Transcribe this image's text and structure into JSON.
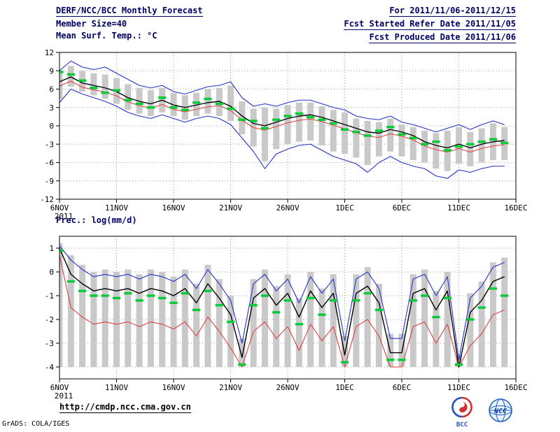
{
  "header": {
    "title": "DERF/NCC/BCC Monthly Forecast",
    "member_size": "Member Size=40",
    "variable": "Mean Surf. Temp.: °C",
    "for_period": "For 2011/11/06-2011/12/15",
    "fcst_started": "Fcst Started Refer Date 2011/11/05",
    "fcst_produced": "Fcst Produced Date 2011/11/06"
  },
  "panel2_label": "Prec.: log(mm/d)",
  "footer": {
    "url": "http://cmdp.ncc.cma.gov.cn",
    "grads_credit": "GrADS: COLA/IGES",
    "logos": [
      {
        "label": "BCC"
      },
      {
        "label": "NCC"
      }
    ]
  },
  "colors": {
    "bar": "#c9c9c9",
    "blue": "#2233cc",
    "red": "#e04040",
    "green": "#00cc33",
    "black": "#000000",
    "grid": "#9a9a9a",
    "header_text": "#000066"
  },
  "chart_data": [
    {
      "type": "line",
      "title": "Mean Surf. Temp.: °C",
      "x_max": 40,
      "xtick_positions": [
        0,
        5,
        10,
        15,
        20,
        25,
        30,
        35,
        40
      ],
      "xtick_labels": [
        "6NOV",
        "11NOV",
        "16NOV",
        "21NOV",
        "26NOV",
        "1DEC",
        "6DEC",
        "11DEC",
        "16DEC"
      ],
      "x_sublabel": "2011",
      "ylim": [
        -12,
        12
      ],
      "yticks": [
        -12,
        -9,
        -6,
        -3,
        0,
        3,
        6,
        9,
        12
      ],
      "series": [
        {
          "name": "member-max",
          "color": "blue",
          "width": 1.1,
          "values": [
            9.0,
            10.6,
            9.6,
            9.2,
            9.6,
            8.6,
            7.6,
            6.6,
            6.2,
            6.6,
            5.6,
            5.2,
            5.8,
            6.4,
            6.6,
            7.2,
            4.6,
            3.2,
            3.6,
            3.2,
            3.8,
            4.2,
            4.2,
            3.6,
            3.0,
            2.6,
            1.6,
            1.2,
            1.0,
            1.6,
            0.6,
            0.2,
            -0.4,
            -1.0,
            -0.4,
            0.2,
            -0.6,
            0.2,
            0.8,
            0.2
          ]
        },
        {
          "name": "member-min",
          "color": "blue",
          "width": 1.1,
          "values": [
            3.8,
            6.0,
            5.2,
            4.6,
            4.0,
            3.2,
            2.2,
            1.6,
            1.2,
            1.8,
            1.2,
            0.6,
            1.2,
            1.6,
            1.2,
            0.2,
            -2.0,
            -4.2,
            -7.0,
            -4.6,
            -3.8,
            -3.2,
            -3.0,
            -4.0,
            -5.0,
            -5.6,
            -6.2,
            -7.6,
            -6.0,
            -5.0,
            -6.0,
            -6.6,
            -7.0,
            -8.2,
            -8.6,
            -7.2,
            -7.6,
            -7.0,
            -6.6,
            -6.6
          ]
        },
        {
          "name": "control-red",
          "color": "red",
          "width": 1.1,
          "values": [
            6.5,
            7.3,
            6.3,
            5.9,
            5.5,
            4.9,
            3.9,
            3.3,
            2.9,
            3.5,
            2.7,
            2.3,
            2.7,
            3.1,
            3.3,
            2.5,
            0.9,
            -0.3,
            -0.7,
            -0.1,
            0.5,
            0.9,
            1.1,
            0.7,
            0.1,
            -0.5,
            -1.1,
            -1.7,
            -1.9,
            -1.3,
            -1.7,
            -2.3,
            -3.3,
            -3.9,
            -4.3,
            -3.7,
            -4.3,
            -3.7,
            -3.3,
            -3.1
          ]
        },
        {
          "name": "ensemble-mean",
          "color": "black",
          "width": 1.4,
          "values": [
            7.2,
            8.0,
            7.0,
            6.6,
            6.2,
            5.6,
            4.6,
            4.0,
            3.6,
            4.2,
            3.4,
            3.0,
            3.4,
            3.8,
            4.0,
            3.2,
            1.6,
            0.4,
            0.0,
            0.6,
            1.2,
            1.6,
            1.8,
            1.4,
            0.8,
            0.2,
            -0.4,
            -1.0,
            -1.2,
            -0.6,
            -1.0,
            -1.6,
            -2.6,
            -3.2,
            -3.6,
            -3.0,
            -3.6,
            -3.0,
            -2.6,
            -2.4
          ]
        }
      ],
      "spread_bars": {
        "color": "bar",
        "high": [
          9.0,
          9.8,
          9.0,
          8.6,
          8.4,
          7.8,
          6.8,
          6.2,
          5.8,
          6.2,
          5.4,
          5.0,
          5.4,
          6.0,
          6.2,
          6.6,
          4.0,
          2.8,
          3.0,
          2.8,
          3.4,
          3.8,
          3.8,
          3.2,
          2.6,
          2.2,
          1.2,
          0.8,
          0.6,
          1.2,
          0.2,
          -0.2,
          -0.8,
          -1.2,
          -0.8,
          -0.2,
          -1.0,
          -0.4,
          0.4,
          -0.2
        ],
        "low": [
          4.4,
          6.4,
          5.6,
          5.0,
          4.4,
          3.6,
          2.6,
          2.0,
          1.6,
          2.2,
          1.6,
          1.0,
          1.6,
          2.0,
          1.6,
          0.8,
          -1.4,
          -3.4,
          -5.8,
          -3.8,
          -3.0,
          -2.6,
          -2.4,
          -3.2,
          -4.2,
          -4.6,
          -5.2,
          -6.4,
          -5.0,
          -4.2,
          -5.0,
          -5.6,
          -6.0,
          -7.0,
          -7.4,
          -6.2,
          -6.6,
          -6.0,
          -5.6,
          -5.6
        ]
      },
      "green_dashes": {
        "color": "green",
        "values": [
          8.8,
          8.4,
          7.4,
          6.2,
          5.4,
          5.8,
          4.2,
          3.6,
          3.0,
          4.6,
          3.0,
          2.6,
          3.8,
          4.4,
          3.6,
          2.8,
          1.0,
          0.8,
          -0.4,
          1.0,
          1.6,
          2.0,
          1.4,
          1.0,
          0.4,
          -0.6,
          -1.0,
          -1.6,
          -0.8,
          -0.2,
          -1.4,
          -2.0,
          -3.0,
          -2.6,
          -4.0,
          -3.4,
          -3.0,
          -2.6,
          -2.2,
          -2.8
        ]
      }
    },
    {
      "type": "line",
      "title": "Prec.: log(mm/d)",
      "x_max": 40,
      "xtick_positions": [
        0,
        5,
        10,
        15,
        20,
        25,
        30,
        35,
        40
      ],
      "xtick_labels": [
        "6NOV",
        "11NOV",
        "16NOV",
        "21NOV",
        "26NOV",
        "1DEC",
        "6DEC",
        "11DEC",
        "16DEC"
      ],
      "x_sublabel": "2011",
      "ylim": [
        -4.5,
        1.5
      ],
      "yticks": [
        -4,
        -3,
        -2,
        -1,
        0,
        1
      ],
      "series": [
        {
          "name": "member-max",
          "color": "blue",
          "width": 1.1,
          "values": [
            1.1,
            0.5,
            0.1,
            -0.2,
            -0.1,
            -0.2,
            -0.1,
            -0.3,
            -0.1,
            -0.2,
            -0.4,
            -0.1,
            -0.7,
            0.1,
            -0.5,
            -1.2,
            -3.0,
            -0.5,
            -0.1,
            -0.8,
            -0.3,
            -1.3,
            -0.2,
            -0.9,
            -0.3,
            -2.9,
            -0.3,
            0.0,
            -0.7,
            -2.8,
            -2.8,
            -0.3,
            -0.1,
            -1.0,
            -0.2,
            -3.7,
            -1.1,
            -0.6,
            0.2,
            0.4
          ]
        },
        {
          "name": "member-min",
          "color": "red",
          "width": 1.1,
          "values": [
            0.7,
            -1.5,
            -1.9,
            -2.2,
            -2.1,
            -2.2,
            -2.1,
            -2.3,
            -2.1,
            -2.2,
            -2.4,
            -2.1,
            -2.7,
            -1.9,
            -2.5,
            -3.2,
            -4.0,
            -2.5,
            -2.1,
            -2.8,
            -2.3,
            -3.3,
            -2.2,
            -2.9,
            -2.3,
            -4.0,
            -2.3,
            -2.0,
            -2.7,
            -4.0,
            -4.0,
            -2.3,
            -2.1,
            -3.0,
            -2.2,
            -4.0,
            -3.1,
            -2.6,
            -1.8,
            -1.6
          ]
        },
        {
          "name": "ensemble-mean",
          "color": "black",
          "width": 1.4,
          "values": [
            1.0,
            -0.1,
            -0.5,
            -0.8,
            -0.7,
            -0.8,
            -0.7,
            -0.9,
            -0.7,
            -0.8,
            -1.0,
            -0.7,
            -1.3,
            -0.5,
            -1.1,
            -1.8,
            -3.6,
            -1.1,
            -0.7,
            -1.4,
            -0.9,
            -1.9,
            -0.8,
            -1.5,
            -0.9,
            -3.5,
            -0.9,
            -0.6,
            -1.3,
            -3.4,
            -3.4,
            -0.9,
            -0.7,
            -1.6,
            -0.8,
            -4.0,
            -1.7,
            -1.2,
            -0.4,
            -0.2
          ]
        }
      ],
      "spread_bars": {
        "color": "bar",
        "high": [
          1.2,
          0.7,
          0.3,
          0.0,
          0.1,
          0.0,
          0.1,
          -0.1,
          0.1,
          0.0,
          -0.2,
          0.1,
          -0.5,
          0.3,
          -0.3,
          -1.0,
          -2.8,
          -0.3,
          0.1,
          -0.6,
          -0.1,
          -1.1,
          0.0,
          -0.7,
          -0.1,
          -2.7,
          -0.1,
          0.2,
          -0.5,
          -2.6,
          -2.6,
          -0.1,
          0.1,
          -0.8,
          0.0,
          -3.5,
          -0.9,
          -0.4,
          0.4,
          0.6
        ],
        "low": -4.0
      },
      "green_dashes": {
        "color": "green",
        "values": [
          0.9,
          -0.4,
          -0.8,
          -1.0,
          -1.0,
          -1.1,
          -0.9,
          -1.2,
          -1.0,
          -1.1,
          -1.3,
          -0.9,
          -1.6,
          -0.8,
          -1.4,
          -2.1,
          -3.9,
          -1.4,
          -1.0,
          -1.7,
          -1.2,
          -2.2,
          -1.1,
          -1.8,
          -1.2,
          -3.8,
          -1.2,
          -0.9,
          -1.6,
          -3.7,
          -3.7,
          -1.2,
          -1.0,
          -1.9,
          -1.1,
          -3.9,
          -2.0,
          -1.5,
          -0.7,
          -1.0
        ]
      }
    }
  ]
}
